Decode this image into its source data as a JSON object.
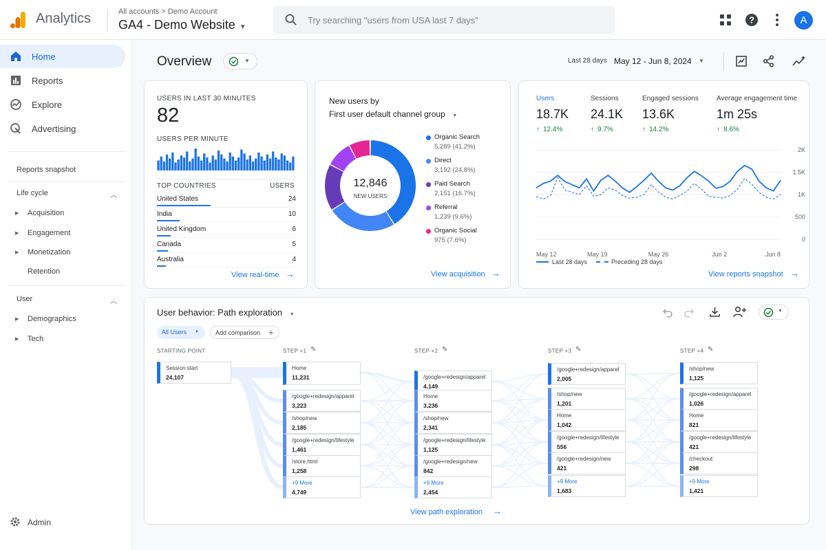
{
  "topbar": {
    "app_name": "Analytics",
    "breadcrumb": "All accounts > Demo Account",
    "property": "GA4 - Demo Website",
    "search_placeholder": "Try searching \"users from USA last 7 days\"",
    "avatar_letter": "A"
  },
  "sidebar": {
    "nav": [
      {
        "label": "Home",
        "icon": "home-icon",
        "active": true
      },
      {
        "label": "Reports",
        "icon": "reports-icon",
        "active": false
      },
      {
        "label": "Explore",
        "icon": "explore-icon",
        "active": false
      },
      {
        "label": "Advertising",
        "icon": "advertising-icon",
        "active": false
      }
    ],
    "reports_snapshot": "Reports snapshot",
    "lifecycle": "Life cycle",
    "lifecycle_items": [
      "Acquisition",
      "Engagement",
      "Monetization",
      "Retention"
    ],
    "user": "User",
    "user_items": [
      "Demographics",
      "Tech"
    ],
    "admin": "Admin"
  },
  "header": {
    "title": "Overview",
    "date_label": "Last 28 days",
    "date_range": "May 12 - Jun 8, 2024"
  },
  "realtime": {
    "label": "USERS IN LAST 30 MINUTES",
    "value": "82",
    "per_minute_label": "USERS PER MINUTE",
    "per_minute": [
      10,
      14,
      9,
      16,
      12,
      18,
      8,
      11,
      15,
      13,
      19,
      9,
      12,
      22,
      14,
      10,
      17,
      13,
      8,
      15,
      11,
      20,
      16,
      12,
      9,
      18,
      14,
      10,
      13,
      21,
      17,
      11,
      15,
      9,
      12,
      18,
      14,
      10,
      16,
      12,
      19,
      13,
      11,
      17,
      15,
      10,
      8,
      14
    ],
    "countries_header": "TOP COUNTRIES",
    "users_header": "USERS",
    "countries": [
      {
        "name": "United States",
        "users": "24",
        "share": 1.0
      },
      {
        "name": "India",
        "users": "10",
        "share": 0.42
      },
      {
        "name": "United Kingdom",
        "users": "6",
        "share": 0.25
      },
      {
        "name": "Canada",
        "users": "5",
        "share": 0.21
      },
      {
        "name": "Australia",
        "users": "4",
        "share": 0.17
      }
    ],
    "link": "View real-time"
  },
  "acquisition": {
    "title": "New users by",
    "subtitle": "First user default channel group",
    "center_value": "12,846",
    "center_label": "NEW USERS",
    "link": "View acquisition",
    "channels": [
      {
        "name": "Organic Search",
        "detail": "5,289 (41.2%)",
        "pct": 41.2,
        "color": "#1a73e8"
      },
      {
        "name": "Direct",
        "detail": "3,192 (24.8%)",
        "pct": 24.8,
        "color": "#4285f4"
      },
      {
        "name": "Paid Search",
        "detail": "2,151 (16.7%)",
        "pct": 16.7,
        "color": "#673ab7"
      },
      {
        "name": "Referral",
        "detail": "1,239 (9.6%)",
        "pct": 9.6,
        "color": "#a142f4"
      },
      {
        "name": "Organic Social",
        "detail": "975 (7.6%)",
        "pct": 7.6,
        "color": "#e52592"
      }
    ]
  },
  "metrics": {
    "items": [
      {
        "label": "Users",
        "value": "18.7K",
        "delta": "12.4%"
      },
      {
        "label": "Sessions",
        "value": "24.1K",
        "delta": "9.7%"
      },
      {
        "label": "Engaged sessions",
        "value": "13.6K",
        "delta": "14.2%"
      },
      {
        "label": "Average engagement time",
        "value": "1m 25s",
        "delta": "8.6%"
      }
    ],
    "link": "View reports snapshot"
  },
  "chart_data": {
    "type": "line",
    "x_ticks": [
      "May 12",
      "May 19",
      "May 26",
      "Jun 2",
      "Jun 8"
    ],
    "y_ticks": [
      "2K",
      "1.5K",
      "1K",
      "500",
      "0"
    ],
    "ylim": [
      0,
      2000
    ],
    "series": [
      {
        "name": "Last 28 days",
        "values": [
          1150,
          1250,
          1300,
          1430,
          1290,
          1220,
          1150,
          1350,
          1080,
          1320,
          1430,
          1300,
          1150,
          1050,
          1180,
          1320,
          1480,
          1300,
          1150,
          1100,
          1200,
          1380,
          1520,
          1420,
          1300,
          1140,
          1180,
          1300,
          1520,
          1650,
          1570,
          1300,
          1150,
          1080,
          1320
        ]
      },
      {
        "name": "Preceding 28 days",
        "values": [
          950,
          900,
          980,
          1380,
          1100,
          1050,
          1000,
          1200,
          960,
          1000,
          1150,
          1100,
          980,
          920,
          940,
          1000,
          1220,
          1060,
          940,
          900,
          980,
          1080,
          1250,
          1120,
          960,
          940,
          920,
          980,
          1120,
          1360,
          1230,
          1050,
          940,
          900,
          1000
        ]
      }
    ]
  },
  "path": {
    "title": "User behavior: Path exploration",
    "segment": "All Users",
    "add_comparison": "Add comparison",
    "link": "View path exploration",
    "start_header": "STARTING POINT",
    "start": {
      "name": "Session start",
      "value": "24,107"
    },
    "steps": [
      {
        "header": "STEP +1",
        "nodes": [
          {
            "name": "Home",
            "value": "11,231"
          },
          {
            "name": "/google+redesign/apparel",
            "value": "3,223"
          },
          {
            "name": "/shop/new",
            "value": "2,185"
          },
          {
            "name": "/google+redesign/lifestyle",
            "value": "1,461"
          },
          {
            "name": "/store.html",
            "value": "1,258"
          },
          {
            "name": "+9 More",
            "value": "4,749"
          }
        ]
      },
      {
        "header": "STEP +2",
        "nodes": [
          {
            "name": "/google+redesign/apparel",
            "value": "4,149"
          },
          {
            "name": "Home",
            "value": "3,236"
          },
          {
            "name": "/shop/new",
            "value": "2,341"
          },
          {
            "name": "/google+redesign/lifestyle",
            "value": "1,125"
          },
          {
            "name": "/google+redesign/new",
            "value": "842"
          },
          {
            "name": "+9 More",
            "value": "2,454"
          }
        ]
      },
      {
        "header": "STEP +3",
        "nodes": [
          {
            "name": "/google+redesign/apparel",
            "value": "2,005"
          },
          {
            "name": "/shop/new",
            "value": "1,201"
          },
          {
            "name": "Home",
            "value": "1,042"
          },
          {
            "name": "/google+redesign/lifestyle",
            "value": "556"
          },
          {
            "name": "/google+redesign/new",
            "value": "421"
          },
          {
            "name": "+9 More",
            "value": "1,683"
          }
        ]
      },
      {
        "header": "STEP +4",
        "nodes": [
          {
            "name": "/shop/new",
            "value": "1,125"
          },
          {
            "name": "/google+redesign/apparel",
            "value": "1,026"
          },
          {
            "name": "Home",
            "value": "821"
          },
          {
            "name": "/google+redesign/lifestyle",
            "value": "421"
          },
          {
            "name": "/checkout",
            "value": "298"
          },
          {
            "name": "+9 More",
            "value": "1,421"
          }
        ]
      }
    ]
  }
}
